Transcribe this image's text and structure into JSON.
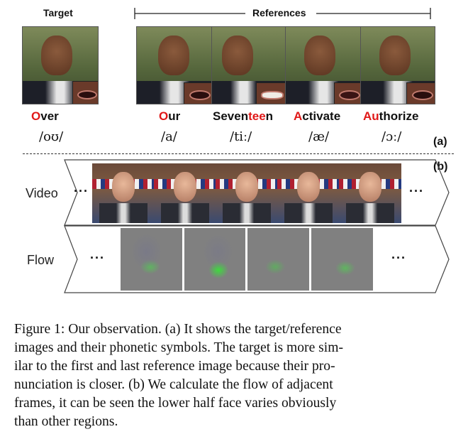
{
  "part_a": {
    "target_header": "Target",
    "references_header": "References",
    "panel_label": "(a)",
    "target": {
      "word_highlight": "O",
      "word_rest": "ver",
      "phonetic": "/oʊ/"
    },
    "references": [
      {
        "word_pre": "",
        "word_highlight": "O",
        "word_rest": "ur",
        "phonetic": "/a/"
      },
      {
        "word_pre": "Seven",
        "word_highlight": "tee",
        "word_rest": "n",
        "phonetic": "/tiː/"
      },
      {
        "word_pre": "",
        "word_highlight": "A",
        "word_rest": "ctivate",
        "phonetic": "/æ/"
      },
      {
        "word_pre": "",
        "word_highlight": "Au",
        "word_rest": "thorize",
        "phonetic": "/ɔː/"
      }
    ]
  },
  "part_b": {
    "panel_label": "(b)",
    "video_label": "Video",
    "flow_label": "Flow",
    "ellipsis": "···"
  },
  "caption": {
    "lines": [
      "Figure 1: Our observation. (a) It shows the target/reference",
      "images and their phonetic symbols. The target is more sim-",
      "ilar to the first and last reference image because their pro-",
      "nunciation is closer. (b) We calculate the flow of adjacent",
      "frames, it can be seen the lower half face varies obviously",
      "than other regions."
    ]
  },
  "colors": {
    "highlight": "#e01818"
  }
}
